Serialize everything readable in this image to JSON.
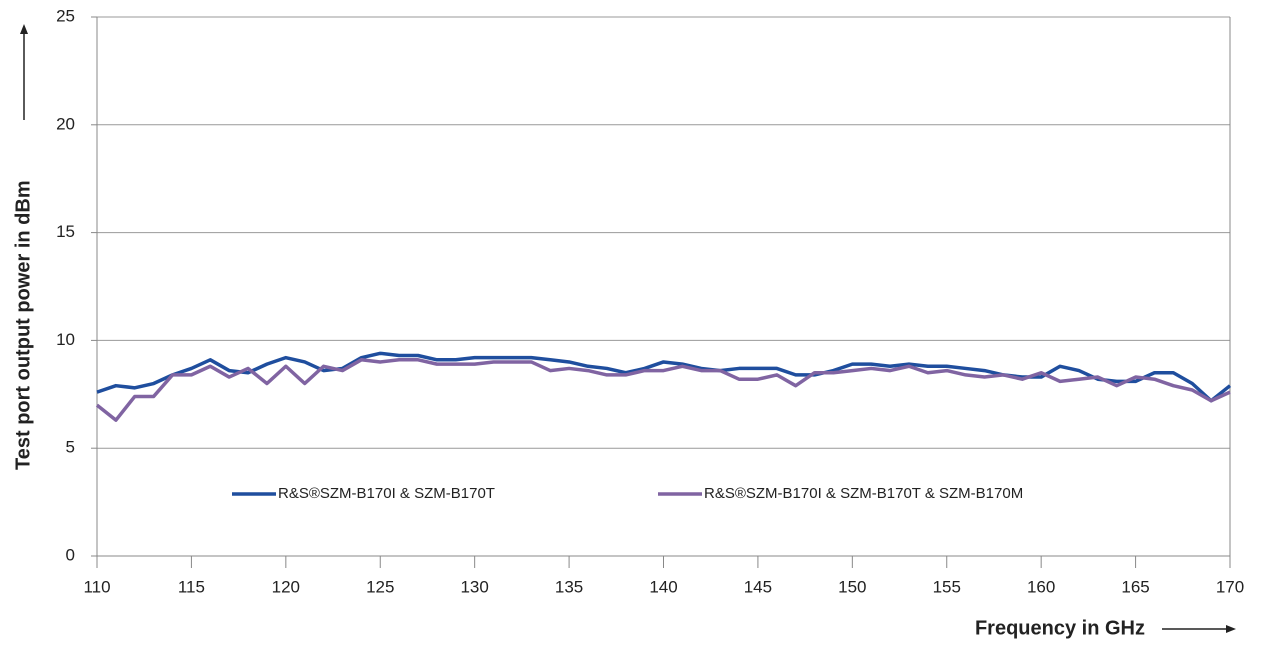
{
  "chart_data": {
    "type": "line",
    "xlabel": "Frequency in GHz",
    "ylabel": "Test port output power in dBm",
    "x": [
      110,
      111,
      112,
      113,
      114,
      115,
      116,
      117,
      118,
      119,
      120,
      121,
      122,
      123,
      124,
      125,
      126,
      127,
      128,
      129,
      130,
      131,
      132,
      133,
      134,
      135,
      136,
      137,
      138,
      139,
      140,
      141,
      142,
      143,
      144,
      145,
      146,
      147,
      148,
      149,
      150,
      151,
      152,
      153,
      154,
      155,
      156,
      157,
      158,
      159,
      160,
      161,
      162,
      163,
      164,
      165,
      166,
      167,
      168,
      169,
      170
    ],
    "series": [
      {
        "name": "R&S®SZM-B170I & SZM-B170T",
        "color": "#1f4e9e",
        "values": [
          7.6,
          7.9,
          7.8,
          8.0,
          8.4,
          8.7,
          9.1,
          8.6,
          8.5,
          8.9,
          9.2,
          9.0,
          8.6,
          8.7,
          9.2,
          9.4,
          9.3,
          9.3,
          9.1,
          9.1,
          9.2,
          9.2,
          9.2,
          9.2,
          9.1,
          9.0,
          8.8,
          8.7,
          8.5,
          8.7,
          9.0,
          8.9,
          8.7,
          8.6,
          8.7,
          8.7,
          8.7,
          8.4,
          8.4,
          8.6,
          8.9,
          8.9,
          8.8,
          8.9,
          8.8,
          8.8,
          8.7,
          8.6,
          8.4,
          8.3,
          8.3,
          8.8,
          8.6,
          8.2,
          8.1,
          8.1,
          8.5,
          8.5,
          8.0,
          7.2,
          7.9
        ]
      },
      {
        "name": "R&S®SZM-B170I & SZM-B170T & SZM-B170M",
        "color": "#8064a2",
        "values": [
          7.0,
          6.3,
          7.4,
          7.4,
          8.4,
          8.4,
          8.8,
          8.3,
          8.7,
          8.0,
          8.8,
          8.0,
          8.8,
          8.6,
          9.1,
          9.0,
          9.1,
          9.1,
          8.9,
          8.9,
          8.9,
          9.0,
          9.0,
          9.0,
          8.6,
          8.7,
          8.6,
          8.4,
          8.4,
          8.6,
          8.6,
          8.8,
          8.6,
          8.6,
          8.2,
          8.2,
          8.4,
          7.9,
          8.5,
          8.5,
          8.6,
          8.7,
          8.6,
          8.8,
          8.5,
          8.6,
          8.4,
          8.3,
          8.4,
          8.2,
          8.5,
          8.1,
          8.2,
          8.3,
          7.9,
          8.3,
          8.2,
          7.9,
          7.7,
          7.2,
          7.6
        ]
      }
    ],
    "xlim": [
      110,
      170
    ],
    "xticks": [
      110,
      115,
      120,
      125,
      130,
      135,
      140,
      145,
      150,
      155,
      160,
      165,
      170
    ],
    "ylim": [
      0,
      25
    ],
    "yticks": [
      0,
      5,
      10,
      15,
      20,
      25
    ],
    "grid": true,
    "legend": "lower center"
  }
}
